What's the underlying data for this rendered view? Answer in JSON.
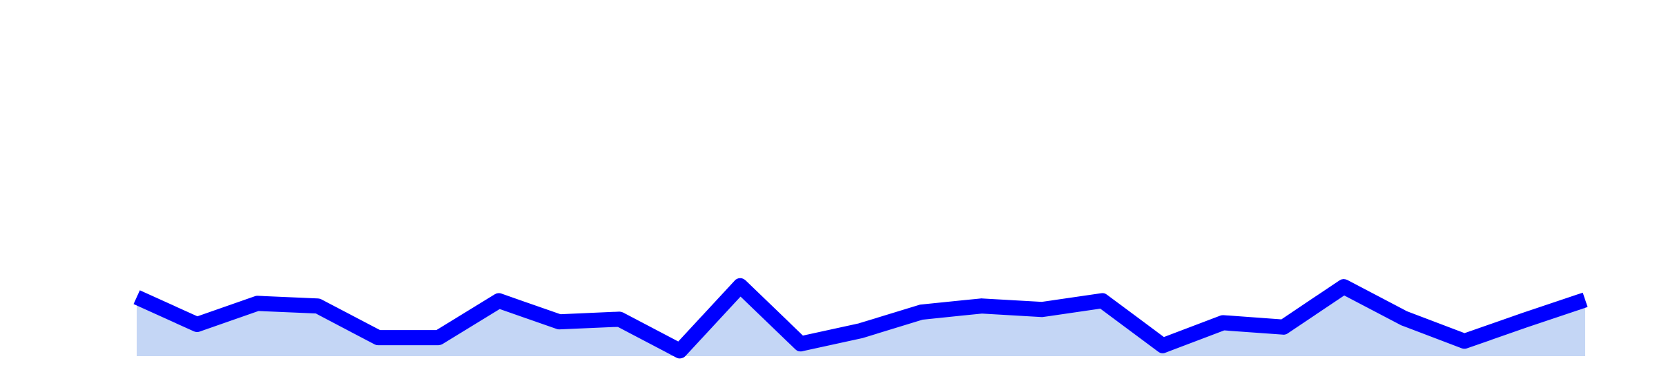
{
  "chart_data": {
    "type": "area",
    "title": "",
    "xlabel": "",
    "ylabel": "",
    "grid": false,
    "legend": false,
    "x": [
      0,
      1,
      2,
      3,
      4,
      5,
      6,
      7,
      8,
      9,
      10,
      11,
      12,
      13,
      14,
      15,
      16,
      17,
      18,
      19,
      20,
      21,
      22,
      23,
      24
    ],
    "series": [
      {
        "values": [
          67,
          36,
          60,
          57,
          21,
          21,
          63,
          39,
          42,
          6,
          80,
          14,
          29,
          50,
          57,
          53,
          63,
          12,
          38,
          33,
          79,
          43,
          17,
          41,
          64
        ],
        "color": "#0000ff",
        "fill": "#c4d6f5"
      }
    ],
    "ylim": [
      0,
      400
    ]
  }
}
